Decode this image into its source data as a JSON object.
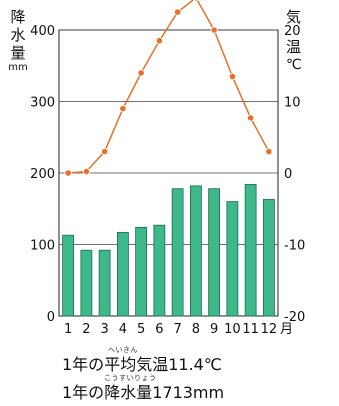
{
  "left_axis": {
    "chars": [
      "降",
      "水",
      "量"
    ],
    "unit": "mm"
  },
  "right_axis": {
    "chars": [
      "気",
      "温"
    ],
    "unit": "℃"
  },
  "chart_data": {
    "type": "bar+line",
    "categories": [
      "1",
      "2",
      "3",
      "4",
      "5",
      "6",
      "7",
      "8",
      "9",
      "10",
      "11",
      "12"
    ],
    "month_suffix": "月",
    "precipitation": {
      "axis": "left",
      "unit": "mm",
      "ylim": [
        0,
        400
      ],
      "ticks": [
        0,
        100,
        200,
        300,
        400
      ],
      "values": [
        113,
        92,
        92,
        117,
        124,
        127,
        178,
        182,
        178,
        160,
        184,
        163
      ],
      "color": "#3cb88a"
    },
    "temperature": {
      "axis": "right",
      "unit": "℃",
      "ylim": [
        -20,
        20
      ],
      "ticks": [
        -20,
        -10,
        0,
        10,
        20
      ],
      "values": [
        0.0,
        0.2,
        3.0,
        9.0,
        14.0,
        18.5,
        22.5,
        24.5,
        20.0,
        13.5,
        7.7,
        3.0
      ],
      "color": "#e8702a"
    },
    "grid": "horizontal"
  },
  "stats": {
    "temp_prefix": "1年の",
    "temp_term": "平均気温",
    "temp_value": "11.4℃",
    "temp_ruby": "へいきん",
    "precip_prefix": "1年の",
    "precip_term": "降水量",
    "precip_value": "1713mm",
    "precip_ruby": "こうすいりょう"
  }
}
